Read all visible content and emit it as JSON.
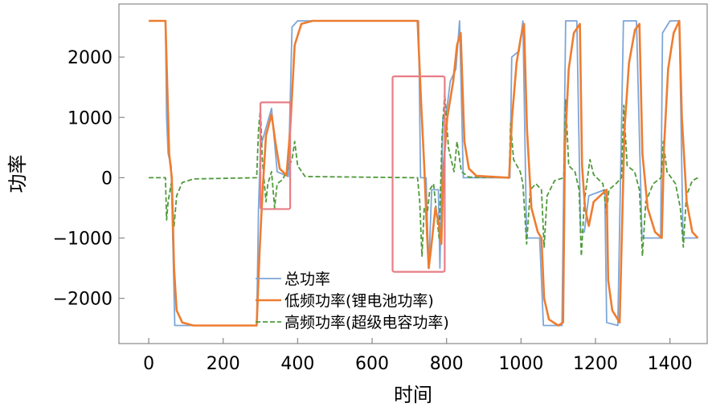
{
  "chart_data": {
    "type": "line",
    "title": "",
    "xlabel": "时间",
    "ylabel": "功率",
    "xlim": [
      -80,
      1500
    ],
    "ylim": [
      -2750,
      2880
    ],
    "x_ticks": [
      0,
      200,
      400,
      600,
      800,
      1000,
      1200,
      1400
    ],
    "x_tick_labels": [
      "0",
      "200",
      "400",
      "600",
      "800",
      "1000",
      "1200",
      "1400"
    ],
    "y_ticks": [
      -2000,
      -1000,
      0,
      1000,
      2000
    ],
    "y_tick_labels": [
      "−2000",
      "−1000",
      "0",
      "1000",
      "2000"
    ],
    "grid": false,
    "legend_position": "bottom-center",
    "series": [
      {
        "name": "总功率",
        "color": "#7ea6d8",
        "style": "solid",
        "points": [
          [
            0,
            2600
          ],
          [
            45,
            2600
          ],
          [
            48,
            1000
          ],
          [
            52,
            400
          ],
          [
            60,
            200
          ],
          [
            70,
            -2450
          ],
          [
            290,
            -2450
          ],
          [
            295,
            -500
          ],
          [
            300,
            500
          ],
          [
            330,
            1150
          ],
          [
            345,
            100
          ],
          [
            375,
            20
          ],
          [
            385,
            2500
          ],
          [
            400,
            2600
          ],
          [
            725,
            2600
          ],
          [
            730,
            0
          ],
          [
            745,
            0
          ],
          [
            752,
            -1500
          ],
          [
            760,
            -200
          ],
          [
            778,
            -200
          ],
          [
            782,
            -1500
          ],
          [
            790,
            1000
          ],
          [
            800,
            1100
          ],
          [
            810,
            1600
          ],
          [
            825,
            1800
          ],
          [
            835,
            2600
          ],
          [
            845,
            0
          ],
          [
            970,
            0
          ],
          [
            975,
            2000
          ],
          [
            995,
            2100
          ],
          [
            1005,
            2600
          ],
          [
            1015,
            -1000
          ],
          [
            1050,
            -1000
          ],
          [
            1060,
            -2450
          ],
          [
            1110,
            -2450
          ],
          [
            1120,
            2600
          ],
          [
            1150,
            2600
          ],
          [
            1160,
            -900
          ],
          [
            1170,
            -900
          ],
          [
            1182,
            -300
          ],
          [
            1225,
            -200
          ],
          [
            1230,
            -2400
          ],
          [
            1260,
            -2450
          ],
          [
            1275,
            2600
          ],
          [
            1310,
            2600
          ],
          [
            1325,
            -1000
          ],
          [
            1375,
            -1000
          ],
          [
            1380,
            2400
          ],
          [
            1400,
            2600
          ],
          [
            1425,
            2600
          ],
          [
            1435,
            -1000
          ],
          [
            1475,
            -1000
          ]
        ]
      },
      {
        "name": "低频功率(锂电池功率)",
        "color": "#ed7d31",
        "style": "solid",
        "points": [
          [
            0,
            2600
          ],
          [
            45,
            2600
          ],
          [
            50,
            1500
          ],
          [
            55,
            400
          ],
          [
            62,
            0
          ],
          [
            68,
            -1500
          ],
          [
            75,
            -2200
          ],
          [
            90,
            -2400
          ],
          [
            120,
            -2450
          ],
          [
            290,
            -2450
          ],
          [
            298,
            -1200
          ],
          [
            306,
            -200
          ],
          [
            315,
            700
          ],
          [
            330,
            1050
          ],
          [
            340,
            600
          ],
          [
            352,
            150
          ],
          [
            370,
            40
          ],
          [
            380,
            800
          ],
          [
            392,
            2200
          ],
          [
            410,
            2550
          ],
          [
            440,
            2600
          ],
          [
            722,
            2600
          ],
          [
            732,
            1200
          ],
          [
            740,
            200
          ],
          [
            748,
            -1000
          ],
          [
            752,
            -1500
          ],
          [
            758,
            -1200
          ],
          [
            770,
            -500
          ],
          [
            780,
            -800
          ],
          [
            786,
            -1100
          ],
          [
            792,
            200
          ],
          [
            802,
            1000
          ],
          [
            818,
            1600
          ],
          [
            828,
            2200
          ],
          [
            838,
            2400
          ],
          [
            848,
            600
          ],
          [
            860,
            150
          ],
          [
            880,
            30
          ],
          [
            968,
            0
          ],
          [
            976,
            1000
          ],
          [
            988,
            1900
          ],
          [
            1000,
            2350
          ],
          [
            1008,
            2550
          ],
          [
            1016,
            800
          ],
          [
            1028,
            -500
          ],
          [
            1045,
            -900
          ],
          [
            1055,
            -1000
          ],
          [
            1062,
            -2000
          ],
          [
            1075,
            -2350
          ],
          [
            1100,
            -2450
          ],
          [
            1113,
            -2400
          ],
          [
            1118,
            500
          ],
          [
            1128,
            1800
          ],
          [
            1142,
            2400
          ],
          [
            1158,
            2550
          ],
          [
            1164,
            200
          ],
          [
            1172,
            -500
          ],
          [
            1182,
            -800
          ],
          [
            1195,
            -400
          ],
          [
            1230,
            -200
          ],
          [
            1234,
            -1700
          ],
          [
            1245,
            -2200
          ],
          [
            1265,
            -2400
          ],
          [
            1278,
            800
          ],
          [
            1290,
            1900
          ],
          [
            1306,
            2450
          ],
          [
            1318,
            2550
          ],
          [
            1326,
            400
          ],
          [
            1340,
            -500
          ],
          [
            1360,
            -900
          ],
          [
            1378,
            -1000
          ],
          [
            1384,
            500
          ],
          [
            1395,
            1800
          ],
          [
            1410,
            2400
          ],
          [
            1425,
            2600
          ],
          [
            1432,
            1000
          ],
          [
            1445,
            -400
          ],
          [
            1460,
            -900
          ],
          [
            1475,
            -1000
          ]
        ]
      },
      {
        "name": "高频功率(超级电容功率)",
        "color": "#4f9a3a",
        "style": "dashed",
        "points": [
          [
            0,
            0
          ],
          [
            45,
            0
          ],
          [
            48,
            -700
          ],
          [
            52,
            -400
          ],
          [
            60,
            -100
          ],
          [
            68,
            -800
          ],
          [
            75,
            -300
          ],
          [
            90,
            -80
          ],
          [
            120,
            -20
          ],
          [
            290,
            0
          ],
          [
            295,
            800
          ],
          [
            300,
            1150
          ],
          [
            305,
            300
          ],
          [
            315,
            -400
          ],
          [
            320,
            -100
          ],
          [
            330,
            100
          ],
          [
            338,
            -500
          ],
          [
            345,
            -100
          ],
          [
            360,
            -30
          ],
          [
            385,
            300
          ],
          [
            392,
            600
          ],
          [
            400,
            200
          ],
          [
            420,
            20
          ],
          [
            722,
            0
          ],
          [
            728,
            -400
          ],
          [
            734,
            -1300
          ],
          [
            740,
            -500
          ],
          [
            748,
            -600
          ],
          [
            755,
            -200
          ],
          [
            765,
            -100
          ],
          [
            780,
            -1000
          ],
          [
            788,
            700
          ],
          [
            795,
            1400
          ],
          [
            805,
            500
          ],
          [
            820,
            100
          ],
          [
            828,
            600
          ],
          [
            840,
            100
          ],
          [
            860,
            10
          ],
          [
            968,
            0
          ],
          [
            972,
            900
          ],
          [
            980,
            300
          ],
          [
            998,
            100
          ],
          [
            1005,
            -100
          ],
          [
            1015,
            -1100
          ],
          [
            1025,
            -200
          ],
          [
            1040,
            -100
          ],
          [
            1055,
            -200
          ],
          [
            1062,
            -1150
          ],
          [
            1070,
            -300
          ],
          [
            1090,
            -50
          ],
          [
            1115,
            0
          ],
          [
            1120,
            1300
          ],
          [
            1128,
            200
          ],
          [
            1145,
            100
          ],
          [
            1156,
            -200
          ],
          [
            1162,
            -1300
          ],
          [
            1170,
            -400
          ],
          [
            1185,
            300
          ],
          [
            1195,
            50
          ],
          [
            1220,
            -100
          ],
          [
            1230,
            -600
          ],
          [
            1236,
            -200
          ],
          [
            1255,
            -100
          ],
          [
            1270,
            0
          ],
          [
            1276,
            1200
          ],
          [
            1285,
            200
          ],
          [
            1305,
            100
          ],
          [
            1318,
            -200
          ],
          [
            1326,
            -1300
          ],
          [
            1335,
            -400
          ],
          [
            1355,
            -100
          ],
          [
            1376,
            0
          ],
          [
            1382,
            600
          ],
          [
            1392,
            100
          ],
          [
            1415,
            -100
          ],
          [
            1428,
            -500
          ],
          [
            1436,
            -1150
          ],
          [
            1444,
            -300
          ],
          [
            1460,
            -50
          ],
          [
            1475,
            0
          ]
        ]
      }
    ]
  }
}
